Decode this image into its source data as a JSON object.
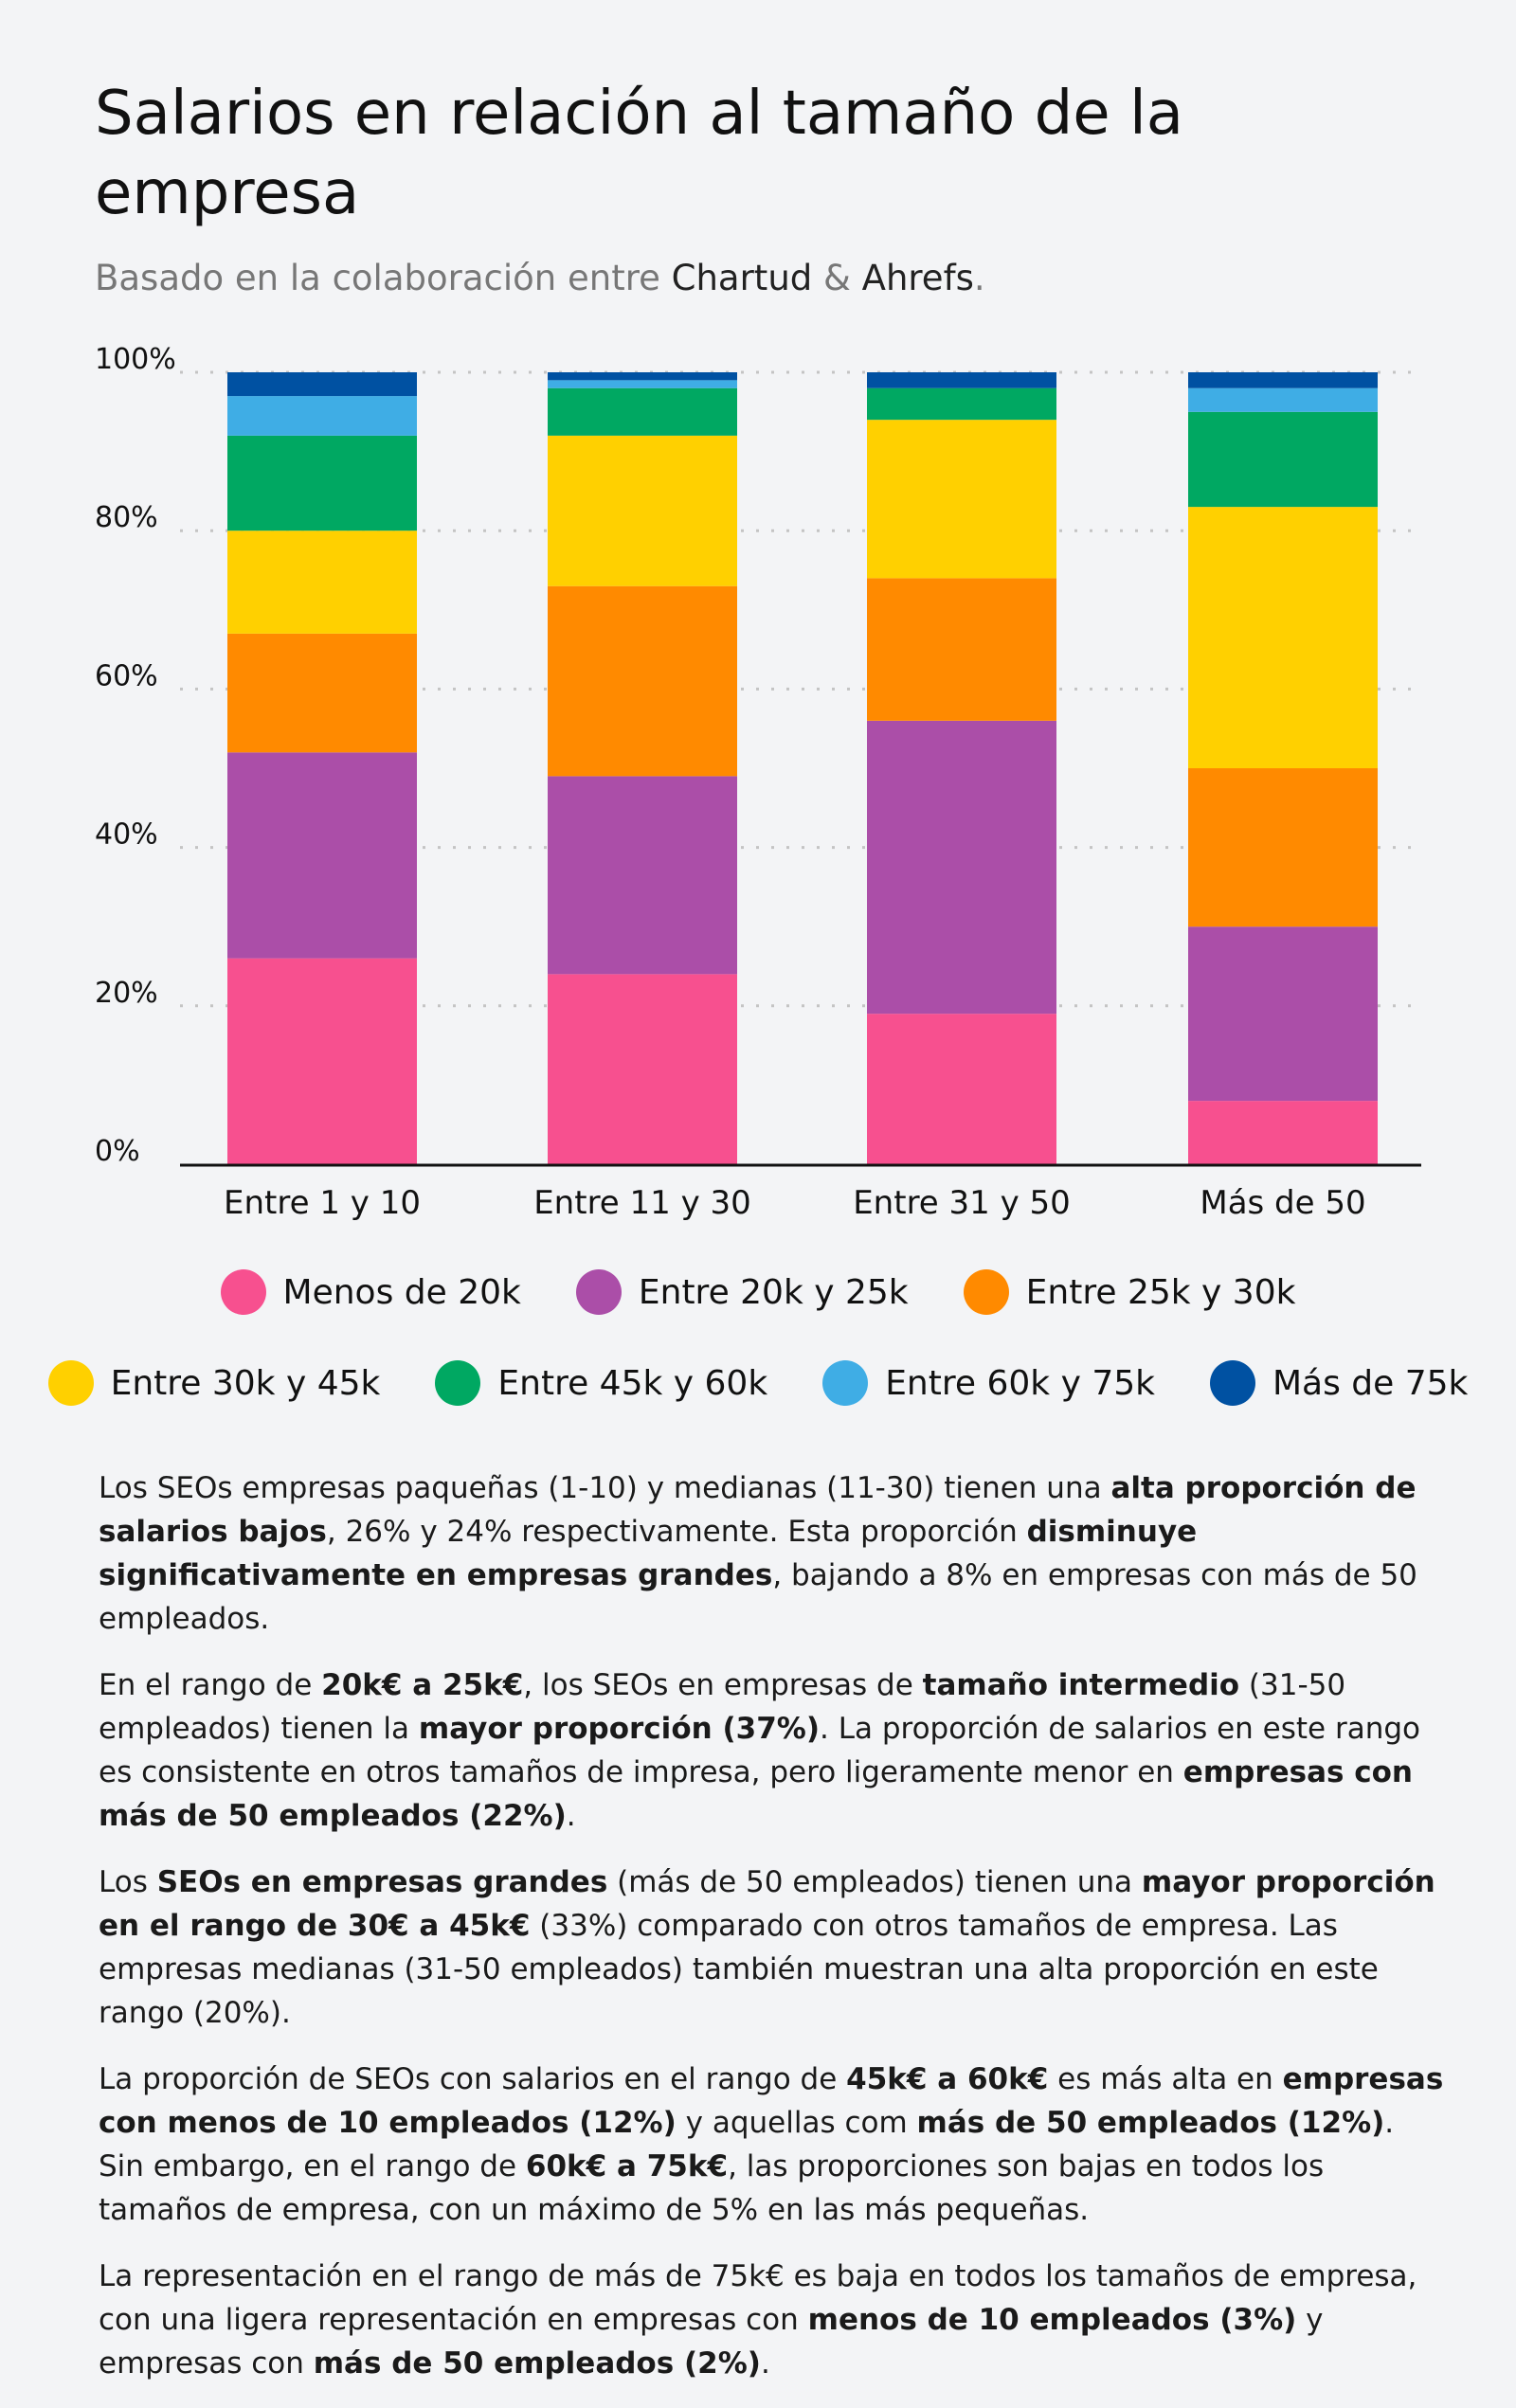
{
  "title": "Salarios en relación al tamaño de la empresa",
  "subtitle": {
    "prefix": "Basado en la colaboración entre ",
    "brand1": "Chartud",
    "amp": " & ",
    "brand2": "Ahrefs",
    "suffix": "."
  },
  "chart_data": {
    "type": "bar",
    "stacked": true,
    "categories": [
      "Entre 1 y 10",
      "Entre 11 y 30",
      "Entre 31 y 50",
      "Más de 50"
    ],
    "ylim": [
      0,
      100
    ],
    "yticks": [
      "0%",
      "20%",
      "40%",
      "60%",
      "80%",
      "100%"
    ],
    "grid": "dotted horizontal",
    "legend_position": "bottom",
    "series": [
      {
        "name": "Menos de 20k",
        "color": "#f7508f",
        "values": [
          26,
          24,
          19,
          8
        ]
      },
      {
        "name": "Entre 20k y 25k",
        "color": "#ab4ea8",
        "values": [
          26,
          25,
          37,
          22
        ]
      },
      {
        "name": "Entre 25k y 30k",
        "color": "#ff8a00",
        "values": [
          15,
          24,
          18,
          20
        ]
      },
      {
        "name": "Entre 30k y 45k",
        "color": "#ffd000",
        "values": [
          13,
          19,
          20,
          33
        ]
      },
      {
        "name": "Entre 45k y 60k",
        "color": "#00a862",
        "values": [
          12,
          6,
          4,
          12
        ]
      },
      {
        "name": "Entre 60k y 75k",
        "color": "#3fade5",
        "values": [
          5,
          1,
          0,
          3
        ]
      },
      {
        "name": "Más de 75k",
        "color": "#0051a2",
        "values": [
          3,
          1,
          2,
          2
        ]
      }
    ]
  },
  "paragraphs": [
    [
      [
        "Los SEOs empresas paqueñas (1-10) y medianas (11-30) tienen una ",
        0
      ],
      [
        "alta proporción de salarios bajos",
        1
      ],
      [
        ", 26% y 24% respectivamente. Esta proporción ",
        0
      ],
      [
        "disminuye significativamente en empresas grandes",
        1
      ],
      [
        ", bajando a 8% en empresas con más de 50 empleados.",
        0
      ]
    ],
    [
      [
        "En el rango de ",
        0
      ],
      [
        "20k€ a 25k€",
        1
      ],
      [
        ", los SEOs en empresas de ",
        0
      ],
      [
        "tamaño intermedio",
        1
      ],
      [
        " (31-50 empleados) tienen la ",
        0
      ],
      [
        "mayor proporción (37%)",
        1
      ],
      [
        ". La proporción de salarios en este rango es consistente en otros tamaños de impresa, pero ligeramente menor en ",
        0
      ],
      [
        "empresas con más de 50 empleados (22%)",
        1
      ],
      [
        ".",
        0
      ]
    ],
    [
      [
        "Los ",
        0
      ],
      [
        "SEOs en empresas grandes",
        1
      ],
      [
        " (más de 50 empleados) tienen una ",
        0
      ],
      [
        "mayor proporción en el rango de 30€ a 45k€",
        1
      ],
      [
        " (33%) comparado con otros tamaños de empresa. Las empresas medianas (31-50 empleados) también muestran una alta proporción en este rango (20%).",
        0
      ]
    ],
    [
      [
        "La proporción de SEOs con salarios en el rango de ",
        0
      ],
      [
        "45k€ a 60k€",
        1
      ],
      [
        " es más alta en ",
        0
      ],
      [
        "empresas con menos de 10 empleados (12%)",
        1
      ],
      [
        " y aquellas com ",
        0
      ],
      [
        "más de 50 empleados (12%)",
        1
      ],
      [
        ". Sin embargo, en el rango de ",
        0
      ],
      [
        "60k€ a 75k€",
        1
      ],
      [
        ", las proporciones son bajas en todos los tamaños de empresa, con un máximo de 5% en las más pequeñas.",
        0
      ]
    ],
    [
      [
        "La representación en el rango de más de 75k€ es baja en todos los tamaños de empresa, con una ligera representación en empresas con ",
        0
      ],
      [
        "menos de 10 empleados (3%)",
        1
      ],
      [
        " y empresas con ",
        0
      ],
      [
        "más de 50 empleados (2%)",
        1
      ],
      [
        ".",
        0
      ]
    ]
  ]
}
